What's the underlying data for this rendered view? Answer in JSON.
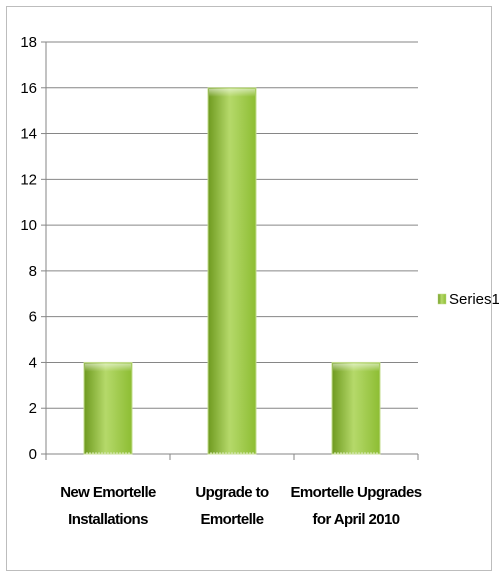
{
  "chart_data": {
    "type": "bar",
    "categories": [
      [
        "New Emortelle",
        "Installations"
      ],
      [
        "Upgrade to",
        "Emortelle"
      ],
      [
        "Emortelle Upgrades",
        "for April 2010"
      ]
    ],
    "series": [
      {
        "name": "Series1",
        "values": [
          4,
          16,
          4
        ]
      }
    ],
    "yticks": [
      "0",
      "2",
      "4",
      "6",
      "8",
      "10",
      "12",
      "14",
      "16",
      "18"
    ],
    "ylim": [
      0,
      18
    ],
    "ytick_step": 2,
    "grid": true,
    "legend_position": "right",
    "colors": {
      "bar_light": "#b5d96a",
      "bar_mid": "#8dbd33",
      "bar_dark": "#6e9a1f",
      "bar_edge": "#c3dc8e",
      "grid": "#868686",
      "axis": "#868686"
    }
  }
}
